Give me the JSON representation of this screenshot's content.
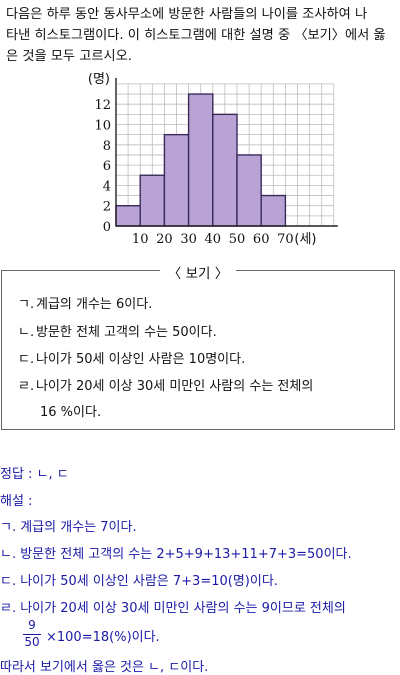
{
  "question": {
    "line1": "다음은 하루 동안 동사무소에 방문한 사람들의 나이를 조사하여 나",
    "line2": "타낸 히스토그램이다. 이 히스토그램에 대한 설명 중 〈보기〉에서 옳",
    "line3": "은 것을 모두 고르시오."
  },
  "chart_data": {
    "type": "bar",
    "bin_edges": [
      0,
      10,
      20,
      30,
      40,
      50,
      60,
      70
    ],
    "values": [
      2,
      5,
      9,
      13,
      11,
      7,
      3
    ],
    "ylabel": "(명)",
    "xlabel_unit": "(세)",
    "y_ticks": [
      0,
      2,
      4,
      6,
      8,
      10,
      12
    ],
    "x_ticks": [
      "10",
      "20",
      "30",
      "40",
      "50",
      "60",
      "70"
    ],
    "ylim": [
      0,
      14
    ],
    "grid": true,
    "bar_color": "#b8a3d4",
    "bar_edge": "#3a2a5a"
  },
  "bogi": {
    "title": "〈 보기 〉",
    "items": [
      {
        "mark": "ㄱ.",
        "text": "계급의 개수는 6이다."
      },
      {
        "mark": "ㄴ.",
        "text": "방문한 전체 고객의 수는 50이다."
      },
      {
        "mark": "ㄷ.",
        "text": "나이가 50세 이상인 사람은 10명이다."
      },
      {
        "mark": "ㄹ.",
        "text": "나이가 20세 이상 30세 미만인 사람의 수는 전체의"
      },
      {
        "mark": "",
        "text": "16 %이다."
      }
    ]
  },
  "solution": {
    "answer": "정답 : ㄴ, ㄷ",
    "header": "해설 :",
    "lines": [
      "ㄱ. 계급의 개수는 7이다.",
      "ㄴ. 방문한 전체 고객의 수는 2+5+9+13+11+7+3=50이다.",
      "ㄷ. 나이가 50세 이상인 사람은 7+3=10(명)이다.",
      "ㄹ. 나이가 20세 이상 30세 미만인 사람의 수는 9이므로 전체의"
    ],
    "frac_num": "9",
    "frac_den": "50",
    "frac_rest": "×100=18(%)이다.",
    "conclusion": "따라서 보기에서 옳은 것은 ㄴ, ㄷ이다."
  }
}
